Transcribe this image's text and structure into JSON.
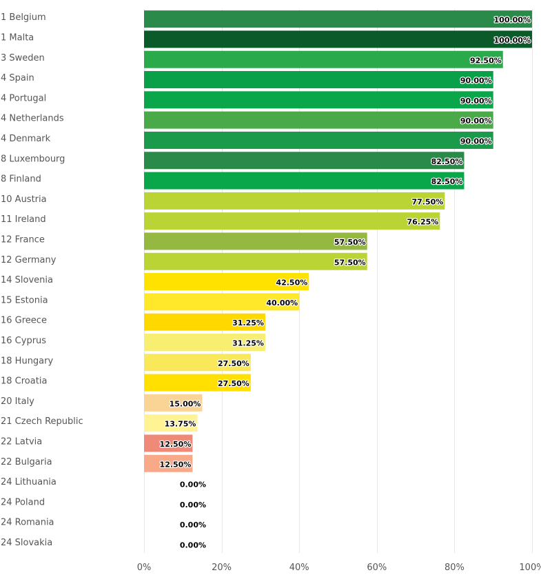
{
  "chart_data": {
    "type": "bar",
    "orientation": "horizontal",
    "categories": [
      "1 Belgium",
      "1 Malta",
      "3 Sweden",
      "4 Spain",
      "4 Portugal",
      "4 Netherlands",
      "4 Denmark",
      "8 Luxembourg",
      "8 Finland",
      "10 Austria",
      "11 Ireland",
      "12 France",
      "12 Germany",
      "14 Slovenia",
      "15 Estonia",
      "16 Greece",
      "16 Cyprus",
      "18 Hungary",
      "18 Croatia",
      "20 Italy",
      "21 Czech Republic",
      "22 Latvia",
      "22 Bulgaria",
      "24 Lithuania",
      "24 Poland",
      "24 Romania",
      "24 Slovakia"
    ],
    "values": [
      100,
      100,
      92.5,
      90,
      90,
      90,
      90,
      82.5,
      82.5,
      77.5,
      76.25,
      57.5,
      57.5,
      42.5,
      40,
      31.25,
      31.25,
      27.5,
      27.5,
      15,
      13.75,
      12.5,
      12.5,
      0,
      0,
      0,
      0
    ],
    "data_labels": [
      "100.00%",
      "100.00%",
      "92.50%",
      "90.00%",
      "90.00%",
      "90.00%",
      "90.00%",
      "82.50%",
      "82.50%",
      "77.50%",
      "76.25%",
      "57.50%",
      "57.50%",
      "42.50%",
      "40.00%",
      "31.25%",
      "31.25%",
      "27.50%",
      "27.50%",
      "15.00%",
      "13.75%",
      "12.50%",
      "12.50%",
      "0.00%",
      "0.00%",
      "0.00%",
      "0.00%"
    ],
    "colors": [
      "#2a8a4a",
      "#0a5a2a",
      "#2aaa4a",
      "#0aa04a",
      "#0aa64a",
      "#4aaa4a",
      "#1a9a4a",
      "#2a8a4a",
      "#0aa64a",
      "#bad436",
      "#bad436",
      "#94b840",
      "#bad436",
      "#ffe200",
      "#ffe82a",
      "#ffd800",
      "#f8ee72",
      "#f8e85a",
      "#ffe000",
      "#fad494",
      "#fff394",
      "#f08a78",
      "#f8aa88",
      "#ffffff",
      "#ffffff",
      "#ffffff",
      "#ffffff"
    ],
    "x_ticks": [
      "0%",
      "20%",
      "40%",
      "60%",
      "80%",
      "100%"
    ],
    "xlim": [
      0,
      100
    ],
    "grid": true
  }
}
